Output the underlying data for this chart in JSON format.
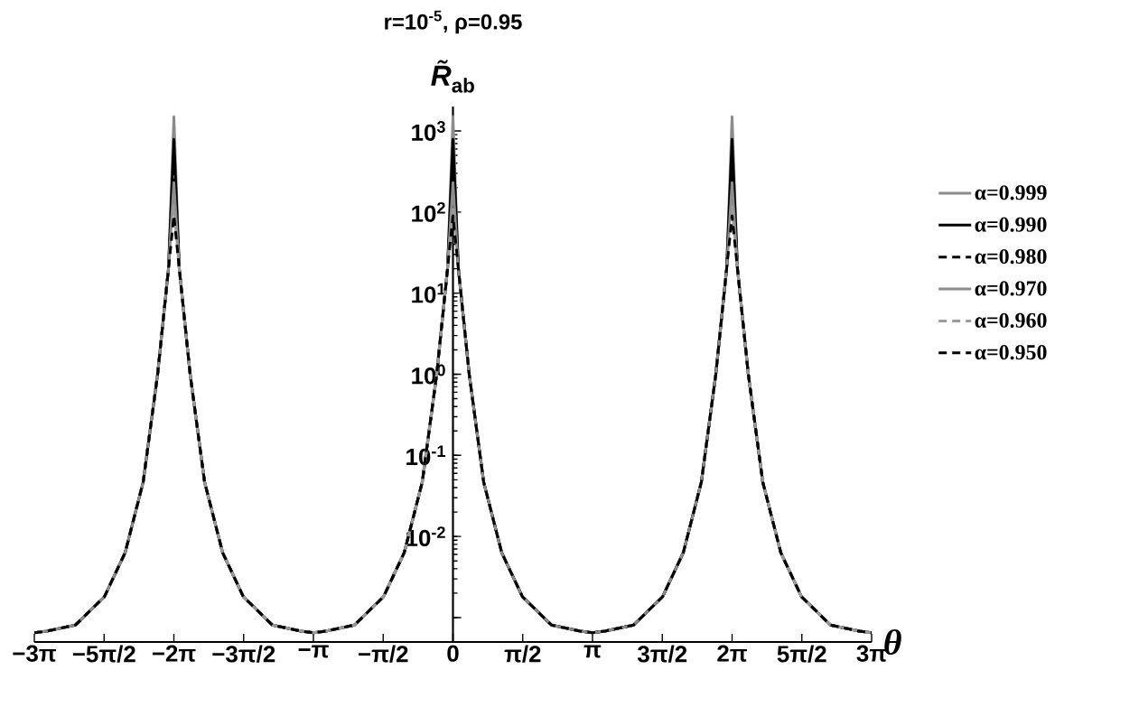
{
  "chart_data": {
    "type": "line",
    "title": "r=10$^{-5}$, ρ=0.95",
    "xlabel": "θ",
    "ylabel": "*R̃*$_{ab}$",
    "log": "y",
    "legend": "right",
    "xlim": [
      -9.425,
      9.425
    ],
    "ylim": [
      0.0005,
      2000
    ],
    "xticks": [
      {
        "value": -9.42478,
        "label": "−3π"
      },
      {
        "value": -7.85398,
        "label": "−5π/2"
      },
      {
        "value": -6.28319,
        "label": "−2π"
      },
      {
        "value": -4.71239,
        "label": "−3π/2"
      },
      {
        "value": -3.14159,
        "label": "−π"
      },
      {
        "value": -1.5708,
        "label": "−π/2"
      },
      {
        "value": 0,
        "label": "0"
      },
      {
        "value": 1.5708,
        "label": "π/2"
      },
      {
        "value": 3.14159,
        "label": "π"
      },
      {
        "value": 4.71239,
        "label": "3π/2"
      },
      {
        "value": 6.28319,
        "label": "2π"
      },
      {
        "value": 7.85398,
        "label": "5π/2"
      },
      {
        "value": 9.42478,
        "label": "3π"
      }
    ],
    "yticks": [
      {
        "value": 0.001,
        "label": null
      },
      {
        "value": 0.01,
        "label": "10$^{-2}$"
      },
      {
        "value": 0.1,
        "label": "10$^{-1}$"
      },
      {
        "value": 1,
        "label": "10$^{0}$"
      },
      {
        "value": 10,
        "label": "10$^{1}$"
      },
      {
        "value": 100,
        "label": "10$^{2}$"
      },
      {
        "value": 1000,
        "label": "10$^{3}$"
      }
    ],
    "x": [
      -9.425,
      -9.15,
      -8.499,
      -7.849,
      -7.381,
      -6.974,
      -6.649,
      -6.405,
      -6.283,
      -6.161,
      -5.917,
      -5.592,
      -5.185,
      -4.717,
      -4.067,
      -3.416,
      -3.142,
      -2.867,
      -2.216,
      -1.566,
      -1.098,
      -0.691,
      -0.366,
      -0.122,
      0,
      0.122,
      0.366,
      0.691,
      1.098,
      1.566,
      2.216,
      2.867,
      3.142,
      3.416,
      4.067,
      4.717,
      5.185,
      5.592,
      5.917,
      6.161,
      6.283,
      6.405,
      6.649,
      6.974,
      7.381,
      7.849,
      8.499,
      9.15,
      9.425
    ],
    "series": [
      {
        "name": "α=0.999",
        "color": "#8c8c8c",
        "line_style": "solid",
        "values": [
          0.00065,
          0.00068,
          0.00081,
          0.0018,
          0.0063,
          0.047,
          1.0,
          20,
          1500,
          20,
          1.0,
          0.047,
          0.0063,
          0.0018,
          0.00081,
          0.00068,
          0.00065,
          0.00068,
          0.00081,
          0.0018,
          0.0063,
          0.047,
          1.0,
          20,
          1500,
          20,
          1.0,
          0.047,
          0.0063,
          0.0018,
          0.00081,
          0.00068,
          0.00065,
          0.00068,
          0.00081,
          0.0018,
          0.0063,
          0.047,
          1.0,
          20,
          1500,
          20,
          1.0,
          0.047,
          0.0063,
          0.0018,
          0.00081,
          0.00068,
          0.00065
        ]
      },
      {
        "name": "α=0.990",
        "color": "#000000",
        "line_style": "solid",
        "values": [
          0.00065,
          0.00068,
          0.00081,
          0.0018,
          0.0063,
          0.047,
          1.0,
          20,
          790,
          20,
          1.0,
          0.047,
          0.0063,
          0.0018,
          0.00081,
          0.00068,
          0.00065,
          0.00068,
          0.00081,
          0.0018,
          0.0063,
          0.047,
          1.0,
          20,
          790,
          20,
          1.0,
          0.047,
          0.0063,
          0.0018,
          0.00081,
          0.00068,
          0.00065,
          0.00068,
          0.00081,
          0.0018,
          0.0063,
          0.047,
          1.0,
          20,
          790,
          20,
          1.0,
          0.047,
          0.0063,
          0.0018,
          0.00081,
          0.00068,
          0.00065
        ]
      },
      {
        "name": "α=0.980",
        "color": "#000000",
        "line_style": "dashed",
        "values": [
          0.00065,
          0.00068,
          0.00081,
          0.0018,
          0.0063,
          0.047,
          1.0,
          20,
          400,
          20,
          1.0,
          0.047,
          0.0063,
          0.0018,
          0.00081,
          0.00068,
          0.00065,
          0.00068,
          0.00081,
          0.0018,
          0.0063,
          0.047,
          1.0,
          20,
          400,
          20,
          1.0,
          0.047,
          0.0063,
          0.0018,
          0.00081,
          0.00068,
          0.00065,
          0.00068,
          0.00081,
          0.0018,
          0.0063,
          0.047,
          1.0,
          20,
          400,
          20,
          1.0,
          0.047,
          0.0063,
          0.0018,
          0.00081,
          0.00068,
          0.00065
        ]
      },
      {
        "name": "α=0.970",
        "color": "#8c8c8c",
        "line_style": "solid",
        "values": [
          0.00065,
          0.00068,
          0.00081,
          0.0018,
          0.0063,
          0.047,
          1.0,
          20,
          230,
          20,
          1.0,
          0.047,
          0.0063,
          0.0018,
          0.00081,
          0.00068,
          0.00065,
          0.00068,
          0.00081,
          0.0018,
          0.0063,
          0.047,
          1.0,
          20,
          230,
          20,
          1.0,
          0.047,
          0.0063,
          0.0018,
          0.00081,
          0.00068,
          0.00065,
          0.00068,
          0.00081,
          0.0018,
          0.0063,
          0.047,
          1.0,
          20,
          230,
          20,
          1.0,
          0.047,
          0.0063,
          0.0018,
          0.00081,
          0.00068,
          0.00065
        ]
      },
      {
        "name": "α=0.960",
        "color": "#9a9a9a",
        "line_style": "dashed",
        "values": [
          0.00065,
          0.00068,
          0.00081,
          0.0018,
          0.0063,
          0.047,
          1.0,
          20,
          120,
          20,
          1.0,
          0.047,
          0.0063,
          0.0018,
          0.00081,
          0.00068,
          0.00065,
          0.00068,
          0.00081,
          0.0018,
          0.0063,
          0.047,
          1.0,
          20,
          120,
          20,
          1.0,
          0.047,
          0.0063,
          0.0018,
          0.00081,
          0.00068,
          0.00065,
          0.00068,
          0.00081,
          0.0018,
          0.0063,
          0.047,
          1.0,
          20,
          120,
          20,
          1.0,
          0.047,
          0.0063,
          0.0018,
          0.00081,
          0.00068,
          0.00065
        ]
      },
      {
        "name": "α=0.950",
        "color": "#000000",
        "line_style": "dashed",
        "values": [
          0.00065,
          0.00068,
          0.00081,
          0.0018,
          0.0063,
          0.047,
          1.0,
          20,
          90,
          20,
          1.0,
          0.047,
          0.0063,
          0.0018,
          0.00081,
          0.00068,
          0.00065,
          0.00068,
          0.00081,
          0.0018,
          0.0063,
          0.047,
          1.0,
          20,
          90,
          20,
          1.0,
          0.047,
          0.0063,
          0.0018,
          0.00081,
          0.00068,
          0.00065,
          0.00068,
          0.00081,
          0.0018,
          0.0063,
          0.047,
          1.0,
          20,
          90,
          20,
          1.0,
          0.047,
          0.0063,
          0.0018,
          0.00081,
          0.00068,
          0.00065
        ]
      }
    ]
  }
}
